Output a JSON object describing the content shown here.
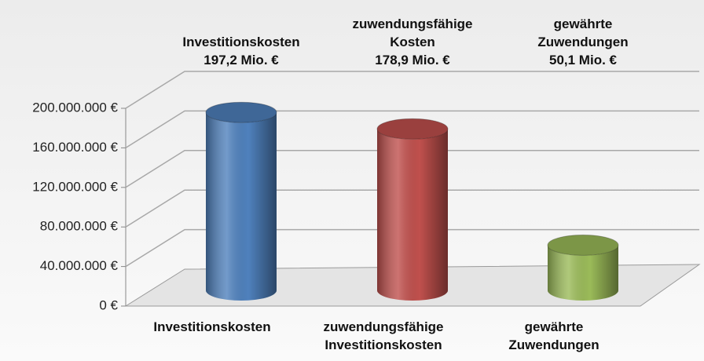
{
  "chart_data": {
    "type": "cylinder",
    "categories": [
      "Investitionskosten",
      "zuwendungsfähige\nInvestitionskosten",
      "gewährte\nZuwendungen"
    ],
    "values": [
      197200000,
      178900000,
      50100000
    ],
    "value_labels": [
      "Investitionskosten\n197,2 Mio. €",
      "zuwendungsfähige\nKosten\n178,9 Mio. €",
      "gewährte\nZuwendungen\n50,1 Mio. €"
    ],
    "colors": [
      "#4f81bd",
      "#c0504d",
      "#9bbb59"
    ],
    "ylim": [
      0,
      200000000
    ],
    "yticks": [
      {
        "value": 0,
        "label": "0 €"
      },
      {
        "value": 40000000,
        "label": "40.000.000 €"
      },
      {
        "value": 80000000,
        "label": "80.000.000 €"
      },
      {
        "value": 120000000,
        "label": "120.000.000 €"
      },
      {
        "value": 160000000,
        "label": "160.000.000 €"
      },
      {
        "value": 200000000,
        "label": "200.000.000 €"
      }
    ],
    "grid": true
  }
}
